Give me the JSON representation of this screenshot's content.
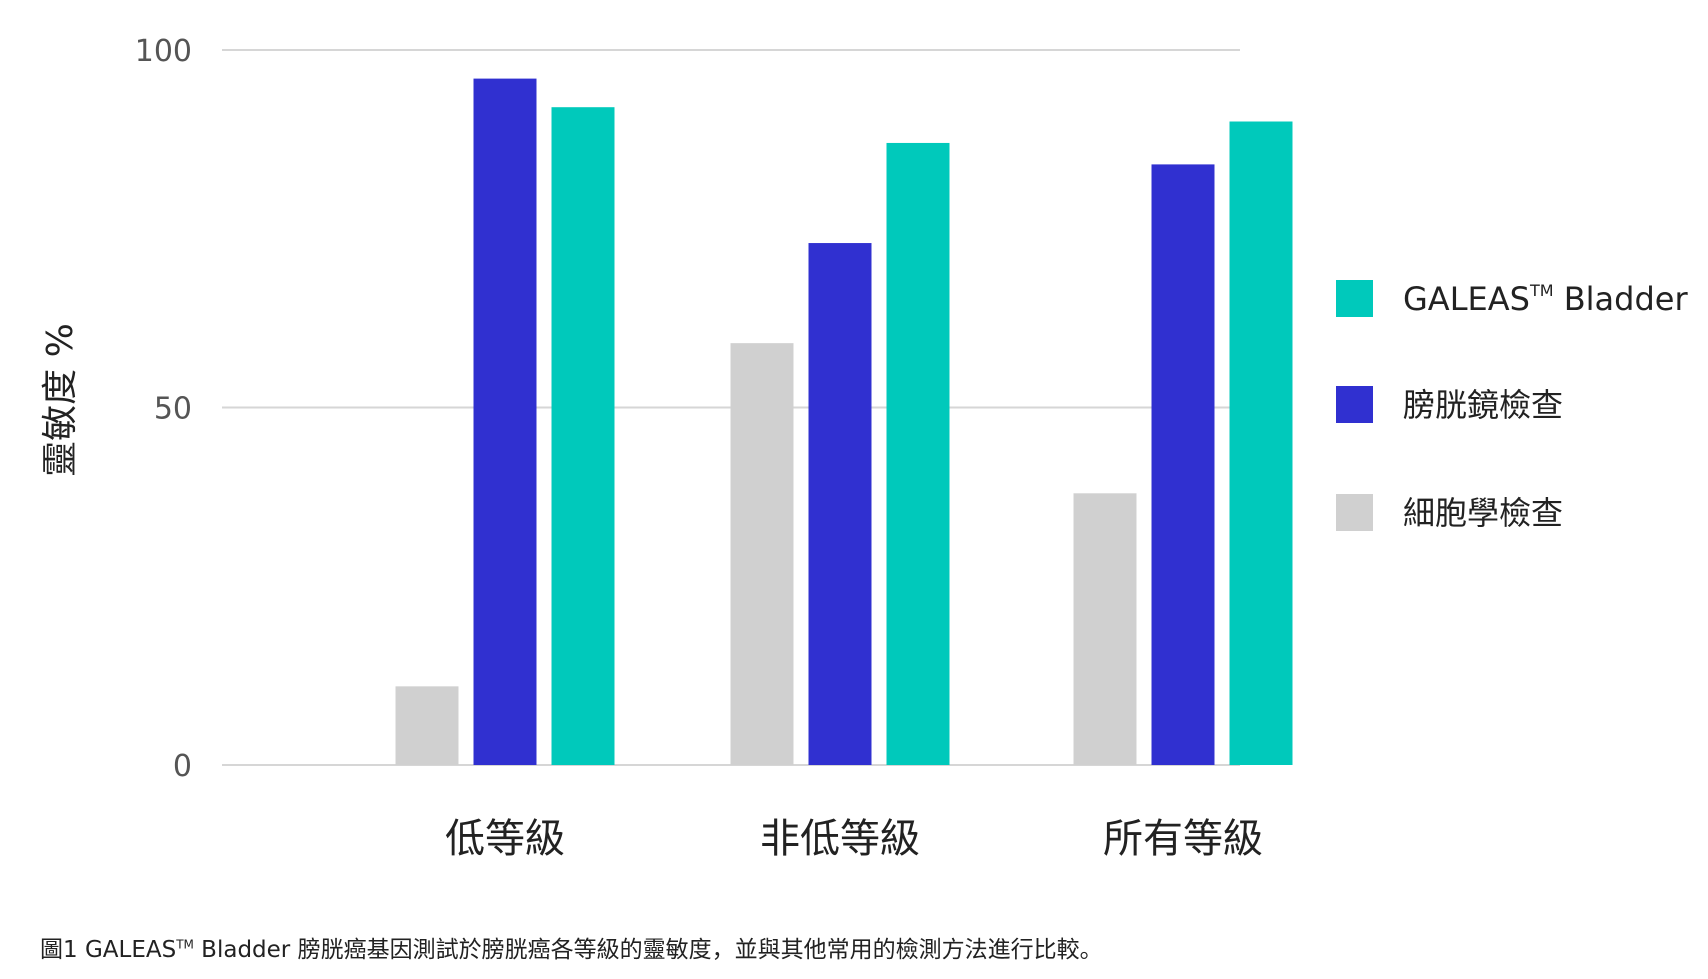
{
  "chart_data": {
    "type": "bar",
    "ylabel": "靈敏度 %",
    "ylim": [
      0,
      100
    ],
    "yticks": [
      "100",
      "50",
      "0"
    ],
    "ytick_values": [
      100,
      50,
      0
    ],
    "categories": [
      "低等級",
      "非低等級",
      "所有等級"
    ],
    "series": [
      {
        "name": "細胞學檢查",
        "color": "#d0d0d0",
        "values": [
          11,
          59,
          38
        ]
      },
      {
        "name": "膀胱鏡檢查",
        "color": "#3030d0",
        "values": [
          96,
          73,
          84
        ]
      },
      {
        "name": "GALEAS™ Bladder",
        "color": "#00c9bb",
        "values": [
          92,
          87,
          90
        ]
      }
    ],
    "legend": {
      "position": "right",
      "entries": [
        {
          "name": "GALEAS",
          "tm": "TM",
          "suffix": " Bladder",
          "color": "#00c9bb"
        },
        {
          "name": "膀胱鏡檢查",
          "color": "#3030d0"
        },
        {
          "name": "細胞學檢查",
          "color": "#d0d0d0"
        }
      ]
    },
    "grid": true
  },
  "caption": {
    "prefix": "圖1 GALEAS",
    "tm": "TM",
    "suffix": " Bladder 膀胱癌基因測試於膀胱癌各等級的靈敏度，並與其他常用的檢測方法進行比較。"
  }
}
